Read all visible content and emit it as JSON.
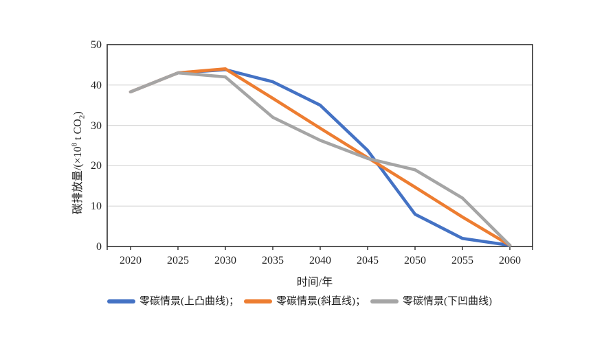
{
  "figure": {
    "background": "#ffffff",
    "axis_color": "#2e2e2e",
    "gridline_color": "#d9d9d9",
    "text_color": "#1f1f1f"
  },
  "chart_data": {
    "type": "line",
    "title": "",
    "xlabel": "时间/年",
    "ylabel": "碳排放量/(×10⁸ t CO₂)",
    "ylabel_parts": [
      {
        "text": "碳排放量/(×10",
        "style": "normal"
      },
      {
        "text": "8",
        "style": "sup"
      },
      {
        "text": " t CO",
        "style": "normal"
      },
      {
        "text": "2",
        "style": "sub"
      },
      {
        "text": ")",
        "style": "normal"
      }
    ],
    "x": [
      2020,
      2025,
      2030,
      2035,
      2040,
      2045,
      2050,
      2055,
      2060
    ],
    "xticks": [
      "2020",
      "2025",
      "2030",
      "2035",
      "2040",
      "2045",
      "2050",
      "2055",
      "2060"
    ],
    "yticks": [
      "0",
      "10",
      "20",
      "30",
      "40",
      "50"
    ],
    "ylim": [
      0,
      50
    ],
    "grid": "horizontal",
    "legend_position": "bottom",
    "series": [
      {
        "name": "零碳情景(上凸曲线)",
        "legend_suffix": "；",
        "color": "#4472C4",
        "values": [
          38.3,
          43,
          43.8,
          40.8,
          35,
          23.8,
          8,
          2,
          0.3
        ]
      },
      {
        "name": "零碳情景(斜直线)",
        "legend_suffix": "；",
        "color": "#ED7D31",
        "values": [
          38.3,
          43,
          44,
          36.7,
          29.3,
          22,
          14.7,
          7.3,
          0.3
        ]
      },
      {
        "name": "零碳情景(下凹曲线)",
        "legend_suffix": "",
        "color": "#A5A5A5",
        "values": [
          38.3,
          43,
          42,
          32,
          26.3,
          21.8,
          19,
          12,
          0.3
        ]
      }
    ]
  }
}
